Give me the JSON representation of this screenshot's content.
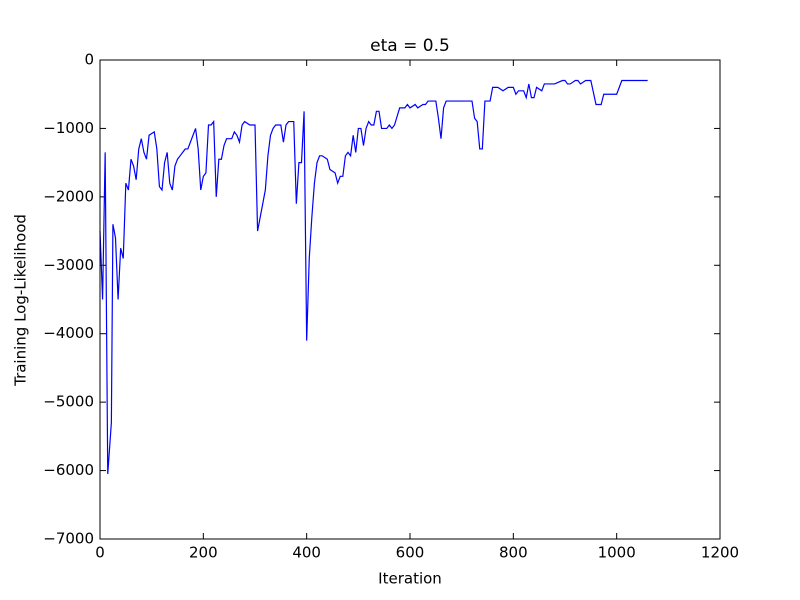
{
  "chart_data": {
    "type": "line",
    "title": "eta = 0.5",
    "x_label": "Iteration",
    "y_label": "Training Log-Likelihood",
    "x": [
      0,
      5,
      10,
      15,
      22,
      25,
      30,
      35,
      40,
      45,
      50,
      55,
      60,
      65,
      70,
      75,
      80,
      85,
      90,
      95,
      105,
      110,
      115,
      120,
      125,
      130,
      135,
      140,
      145,
      150,
      155,
      160,
      165,
      170,
      175,
      180,
      185,
      190,
      195,
      200,
      205,
      210,
      215,
      220,
      225,
      230,
      235,
      240,
      245,
      255,
      260,
      265,
      270,
      275,
      280,
      290,
      300,
      305,
      310,
      320,
      325,
      330,
      335,
      340,
      350,
      355,
      360,
      365,
      370,
      375,
      380,
      385,
      390,
      395,
      400,
      405,
      410,
      415,
      420,
      425,
      430,
      440,
      445,
      455,
      460,
      465,
      470,
      475,
      480,
      485,
      490,
      495,
      500,
      505,
      510,
      515,
      520,
      525,
      530,
      535,
      540,
      545,
      555,
      560,
      565,
      570,
      580,
      590,
      595,
      600,
      610,
      615,
      625,
      630,
      635,
      650,
      655,
      660,
      665,
      670,
      680,
      720,
      725,
      730,
      735,
      740,
      745,
      755,
      760,
      770,
      780,
      790,
      800,
      805,
      810,
      820,
      825,
      830,
      835,
      840,
      845,
      855,
      860,
      880,
      895,
      900,
      905,
      910,
      920,
      925,
      930,
      940,
      950,
      960,
      970,
      975,
      1000,
      1010,
      1020,
      1060
    ],
    "series": [
      {
        "name": "eta = 0.5",
        "color": "#0000ff",
        "values": [
          -2500,
          -3500,
          -1350,
          -6050,
          -5300,
          -2400,
          -2600,
          -3500,
          -2750,
          -2900,
          -1800,
          -1900,
          -1450,
          -1550,
          -1750,
          -1300,
          -1150,
          -1350,
          -1450,
          -1100,
          -1050,
          -1300,
          -1850,
          -1900,
          -1500,
          -1350,
          -1800,
          -1900,
          -1550,
          -1450,
          -1400,
          -1350,
          -1300,
          -1300,
          -1200,
          -1100,
          -1000,
          -1300,
          -1900,
          -1700,
          -1650,
          -950,
          -950,
          -900,
          -2000,
          -1450,
          -1450,
          -1250,
          -1150,
          -1150,
          -1050,
          -1100,
          -1200,
          -950,
          -900,
          -950,
          -950,
          -2500,
          -2300,
          -1900,
          -1400,
          -1100,
          -1000,
          -950,
          -950,
          -1200,
          -950,
          -900,
          -900,
          -900,
          -2100,
          -1500,
          -1500,
          -750,
          -4100,
          -2900,
          -2300,
          -1800,
          -1500,
          -1400,
          -1400,
          -1450,
          -1600,
          -1650,
          -1800,
          -1700,
          -1700,
          -1400,
          -1350,
          -1400,
          -1100,
          -1350,
          -1000,
          -1000,
          -1250,
          -1000,
          -900,
          -950,
          -950,
          -750,
          -750,
          -1000,
          -1000,
          -950,
          -1000,
          -950,
          -700,
          -700,
          -650,
          -700,
          -650,
          -700,
          -650,
          -650,
          -600,
          -600,
          -850,
          -1150,
          -700,
          -600,
          -600,
          -600,
          -850,
          -900,
          -1300,
          -1300,
          -600,
          -600,
          -400,
          -400,
          -450,
          -400,
          -400,
          -500,
          -450,
          -450,
          -550,
          -350,
          -550,
          -550,
          -400,
          -450,
          -350,
          -350,
          -300,
          -300,
          -350,
          -350,
          -300,
          -300,
          -350,
          -300,
          -300,
          -650,
          -650,
          -500,
          -500,
          -300,
          -300,
          -300
        ]
      }
    ],
    "xlim": [
      0,
      1200
    ],
    "xticks": [
      0,
      200,
      400,
      600,
      800,
      1000,
      1200
    ],
    "ylim": [
      -7000,
      0
    ],
    "yticks": [
      {
        "value": -7000,
        "label": "−7000"
      },
      {
        "value": -6000,
        "label": "−6000"
      },
      {
        "value": -5000,
        "label": "−5000"
      },
      {
        "value": -4000,
        "label": "−4000"
      },
      {
        "value": -3000,
        "label": "−3000"
      },
      {
        "value": -2000,
        "label": "−2000"
      },
      {
        "value": -1000,
        "label": "−1000"
      },
      0
    ]
  }
}
